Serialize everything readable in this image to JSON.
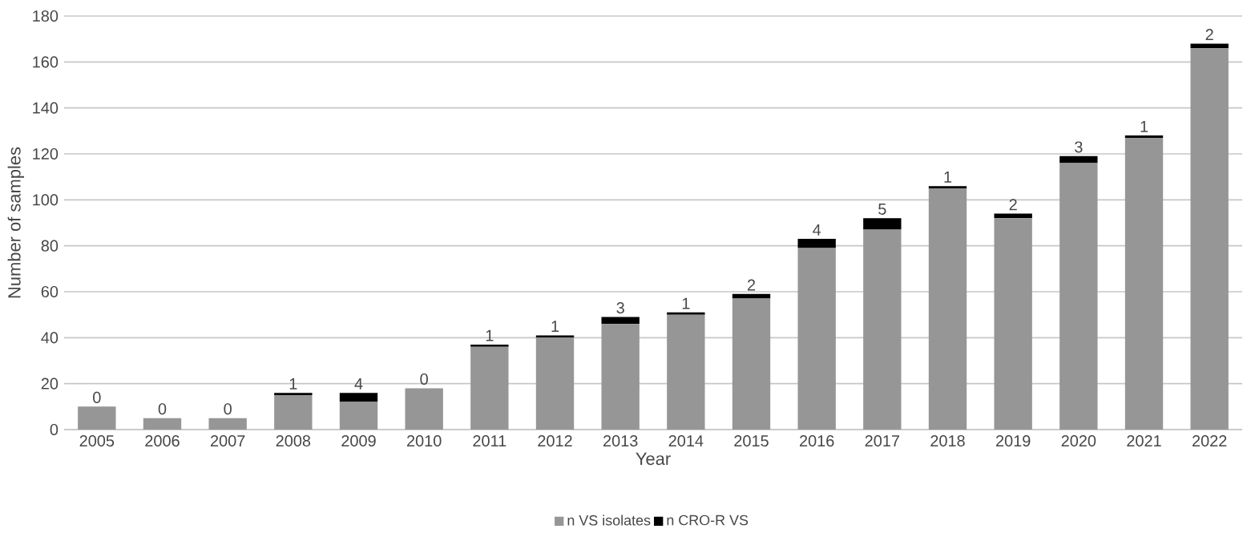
{
  "chart_data": {
    "type": "bar",
    "stacked": true,
    "xlabel": "Year",
    "ylabel": "Number of samples",
    "categories": [
      "2005",
      "2006",
      "2007",
      "2008",
      "2009",
      "2010",
      "2011",
      "2012",
      "2013",
      "2014",
      "2015",
      "2016",
      "2017",
      "2018",
      "2019",
      "2020",
      "2021",
      "2022"
    ],
    "series": [
      {
        "name": "n VS isolates",
        "color": "#969696",
        "values": [
          10,
          5,
          5,
          15,
          12,
          18,
          36,
          40,
          46,
          50,
          57,
          79,
          87,
          105,
          92,
          116,
          127,
          166
        ]
      },
      {
        "name": "n CRO-R VS",
        "color": "#000000",
        "values": [
          0,
          0,
          0,
          1,
          4,
          0,
          1,
          1,
          3,
          1,
          2,
          4,
          5,
          1,
          2,
          3,
          1,
          2
        ],
        "value_labels": [
          "0",
          "0",
          "0",
          "1",
          "4",
          "0",
          "1",
          "1",
          "3",
          "1",
          "2",
          "4",
          "5",
          "1",
          "2",
          "3",
          "1",
          "2"
        ]
      }
    ],
    "ylim": [
      0,
      180
    ],
    "yticks": [
      0,
      20,
      40,
      60,
      80,
      100,
      120,
      140,
      160,
      180
    ],
    "grid": "y",
    "legend": "bottom"
  }
}
